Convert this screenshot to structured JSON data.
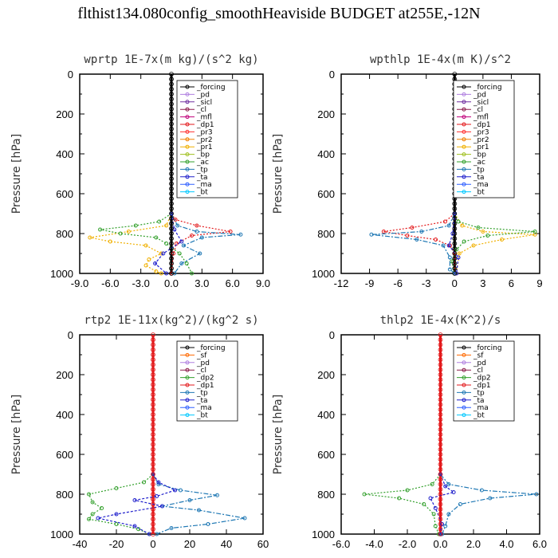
{
  "title": "flthist134.080config_smoothHeaviside  BUDGET at255E,-12N",
  "chart_data": [
    {
      "type": "line",
      "title": "wprtp  1E-7x(m kg)/(s^2 kg)",
      "ylabel": "Pressure [hPa]",
      "xlim": [
        -9,
        9
      ],
      "ylim": [
        1000,
        0
      ],
      "xticks": [
        "-9.0",
        "-6.0",
        "-3.0",
        "0.0",
        "3.0",
        "6.0",
        "9.0"
      ],
      "xtick_values": [
        -9,
        -6,
        -3,
        0,
        3,
        6,
        9
      ],
      "yticks": [
        0,
        200,
        400,
        600,
        800,
        1000
      ],
      "legend": [
        "_forcing",
        "_pd",
        "_sicl",
        "_cl",
        "_mfl",
        "_dp1",
        "_pr3",
        "_pr2",
        "_pr1",
        "_bp",
        "_ac",
        "_tp",
        "_ta",
        "_ma",
        "_bt"
      ],
      "series": [
        {
          "name": "_forcing",
          "color": "#000000",
          "values": [
            [
              0,
              0
            ],
            [
              0,
              1000
            ]
          ]
        },
        {
          "name": "_dp1",
          "color": "#e31a1c",
          "values": [
            [
              0,
              700
            ],
            [
              0.4,
              730
            ],
            [
              2.5,
              760
            ],
            [
              5.8,
              790
            ],
            [
              2.0,
              810
            ],
            [
              0.5,
              850
            ],
            [
              0.2,
              900
            ],
            [
              0,
              1000
            ]
          ]
        },
        {
          "name": "_pr1",
          "color": "#f0b000",
          "values": [
            [
              0,
              700
            ],
            [
              -0.5,
              760
            ],
            [
              -4.2,
              790
            ],
            [
              -8.0,
              820
            ],
            [
              -6.0,
              840
            ],
            [
              -2.5,
              860
            ],
            [
              -1.0,
              900
            ],
            [
              -2.2,
              930
            ],
            [
              -2.5,
              960
            ],
            [
              -1.5,
              990
            ],
            [
              -1.0,
              1000
            ]
          ]
        },
        {
          "name": "_ac",
          "color": "#33a02c",
          "values": [
            [
              0,
              700
            ],
            [
              -1.2,
              740
            ],
            [
              -3.5,
              760
            ],
            [
              -7.0,
              780
            ],
            [
              -5.0,
              800
            ],
            [
              -1.5,
              820
            ],
            [
              -0.5,
              850
            ],
            [
              0.8,
              900
            ],
            [
              1.5,
              950
            ],
            [
              2.0,
              1000
            ]
          ]
        },
        {
          "name": "_tp",
          "color": "#1f78b4",
          "values": [
            [
              0,
              700
            ],
            [
              0.6,
              760
            ],
            [
              2.5,
              790
            ],
            [
              6.8,
              805
            ],
            [
              3.0,
              820
            ],
            [
              1.2,
              860
            ],
            [
              2.8,
              900
            ],
            [
              1.0,
              950
            ],
            [
              0.3,
              1000
            ]
          ]
        },
        {
          "name": "_ta",
          "color": "#2020cc",
          "values": [
            [
              0,
              700
            ],
            [
              0.3,
              780
            ],
            [
              1.0,
              840
            ],
            [
              -0.8,
              900
            ],
            [
              -1.6,
              950
            ],
            [
              -0.5,
              1000
            ]
          ]
        }
      ]
    },
    {
      "type": "line",
      "title": "wpthlp  1E-4x(m K)/s^2",
      "ylabel": "Pressure [hPa]",
      "xlim": [
        -12,
        9
      ],
      "ylim": [
        1000,
        0
      ],
      "xticks": [
        "-12",
        "-9",
        "-6",
        "-3",
        "0",
        "3",
        "6",
        "9"
      ],
      "xtick_values": [
        -12,
        -9,
        -6,
        -3,
        0,
        3,
        6,
        9
      ],
      "yticks": [
        0,
        200,
        400,
        600,
        800,
        1000
      ],
      "legend": [
        "_forcing",
        "_pd",
        "_sicl",
        "_cl",
        "_mfl",
        "_dp1",
        "_pr3",
        "_pr2",
        "_pr1",
        "_bp",
        "_ac",
        "_tp",
        "_ta",
        "_ma",
        "_bt"
      ],
      "series": [
        {
          "name": "_forcing",
          "color": "#000000",
          "values": [
            [
              0,
              0
            ],
            [
              0,
              1000
            ]
          ]
        },
        {
          "name": "_dp1",
          "color": "#e31a1c",
          "values": [
            [
              0,
              700
            ],
            [
              -1.0,
              740
            ],
            [
              -4.5,
              770
            ],
            [
              -7.5,
              790
            ],
            [
              -5.0,
              810
            ],
            [
              -2.0,
              830
            ],
            [
              -0.5,
              860
            ],
            [
              0,
              900
            ],
            [
              0,
              1000
            ]
          ]
        },
        {
          "name": "_pr1",
          "color": "#f0b000",
          "values": [
            [
              0,
              700
            ],
            [
              0.8,
              760
            ],
            [
              3.0,
              790
            ],
            [
              8.5,
              805
            ],
            [
              5.0,
              830
            ],
            [
              2.0,
              860
            ],
            [
              0.5,
              900
            ],
            [
              0.2,
              1000
            ]
          ]
        },
        {
          "name": "_ac",
          "color": "#33a02c",
          "values": [
            [
              0,
              700
            ],
            [
              0.4,
              740
            ],
            [
              2.5,
              770
            ],
            [
              8.5,
              790
            ],
            [
              3.5,
              810
            ],
            [
              1.0,
              840
            ],
            [
              0.2,
              880
            ],
            [
              -0.3,
              940
            ],
            [
              0,
              1000
            ]
          ]
        },
        {
          "name": "_tp",
          "color": "#1f78b4",
          "values": [
            [
              0,
              700
            ],
            [
              -0.6,
              760
            ],
            [
              -3.5,
              790
            ],
            [
              -8.8,
              805
            ],
            [
              -4.0,
              830
            ],
            [
              -1.2,
              860
            ],
            [
              -0.5,
              920
            ],
            [
              -0.5,
              980
            ],
            [
              0,
              1000
            ]
          ]
        },
        {
          "name": "_ta",
          "color": "#2020cc",
          "values": [
            [
              0,
              700
            ],
            [
              -0.2,
              800
            ],
            [
              -0.6,
              860
            ],
            [
              0.4,
              920
            ],
            [
              0.2,
              1000
            ]
          ]
        }
      ]
    },
    {
      "type": "line",
      "title": "rtp2  1E-11x(kg^2)/(kg^2 s)",
      "ylabel": "Pressure [hPa]",
      "xlim": [
        -40,
        60
      ],
      "ylim": [
        1000,
        0
      ],
      "xticks": [
        "-40",
        "-20",
        "0",
        "20",
        "40",
        "60"
      ],
      "xtick_values": [
        -40,
        -20,
        0,
        20,
        40,
        60
      ],
      "yticks": [
        0,
        200,
        400,
        600,
        800,
        1000
      ],
      "legend": [
        "_forcing",
        "_sf",
        "_pd",
        "_cl",
        "_dp2",
        "_dp1",
        "_tp",
        "_ta",
        "_ma",
        "_bt"
      ],
      "series": [
        {
          "name": "_forcing",
          "color": "#e31a1c",
          "values": [
            [
              0,
              0
            ],
            [
              0,
              1000
            ]
          ]
        },
        {
          "name": "_dp2",
          "color": "#33a02c",
          "values": [
            [
              0,
              700
            ],
            [
              -5,
              740
            ],
            [
              -20,
              770
            ],
            [
              -35,
              800
            ],
            [
              -33,
              840
            ],
            [
              -28,
              870
            ],
            [
              -33,
              900
            ],
            [
              -35,
              925
            ],
            [
              -20,
              950
            ],
            [
              -8,
              975
            ],
            [
              -2,
              1000
            ]
          ]
        },
        {
          "name": "_tp",
          "color": "#1f78b4",
          "values": [
            [
              0,
              700
            ],
            [
              3,
              750
            ],
            [
              15,
              780
            ],
            [
              35,
              805
            ],
            [
              20,
              830
            ],
            [
              5,
              860
            ],
            [
              25,
              880
            ],
            [
              50,
              920
            ],
            [
              30,
              950
            ],
            [
              10,
              970
            ],
            [
              2,
              1000
            ]
          ]
        },
        {
          "name": "_ta",
          "color": "#2020cc",
          "values": [
            [
              0,
              700
            ],
            [
              3,
              740
            ],
            [
              12,
              780
            ],
            [
              2,
              810
            ],
            [
              -10,
              830
            ],
            [
              5,
              860
            ],
            [
              -20,
              900
            ],
            [
              -30,
              920
            ],
            [
              -10,
              960
            ],
            [
              -2,
              1000
            ]
          ]
        }
      ]
    },
    {
      "type": "line",
      "title": "thlp2  1E-4x(K^2)/s",
      "ylabel": "Pressure [hPa]",
      "xlim": [
        -6,
        6
      ],
      "ylim": [
        1000,
        0
      ],
      "xticks": [
        "-6.0",
        "-4.0",
        "-2.0",
        "0.0",
        "2.0",
        "4.0",
        "6.0"
      ],
      "xtick_values": [
        -6,
        -4,
        -2,
        0,
        2,
        4,
        6
      ],
      "yticks": [
        0,
        200,
        400,
        600,
        800,
        1000
      ],
      "legend": [
        "_forcing",
        "_sf",
        "_pd",
        "_cl",
        "_dp2",
        "_dp1",
        "_tp",
        "_ta",
        "_ma",
        "_bt"
      ],
      "series": [
        {
          "name": "_forcing",
          "color": "#e31a1c",
          "values": [
            [
              0,
              0
            ],
            [
              0,
              1000
            ]
          ]
        },
        {
          "name": "_dp2",
          "color": "#33a02c",
          "values": [
            [
              0,
              700
            ],
            [
              -0.5,
              750
            ],
            [
              -2.0,
              780
            ],
            [
              -4.6,
              800
            ],
            [
              -2.5,
              820
            ],
            [
              -1.0,
              850
            ],
            [
              -0.4,
              900
            ],
            [
              -0.3,
              960
            ],
            [
              -0.1,
              1000
            ]
          ]
        },
        {
          "name": "_tp",
          "color": "#1f78b4",
          "values": [
            [
              0,
              700
            ],
            [
              0.5,
              750
            ],
            [
              2.5,
              780
            ],
            [
              5.8,
              800
            ],
            [
              3.0,
              820
            ],
            [
              1.2,
              850
            ],
            [
              0.5,
              900
            ],
            [
              0.3,
              960
            ],
            [
              0.1,
              1000
            ]
          ]
        },
        {
          "name": "_ta",
          "color": "#2020cc",
          "values": [
            [
              0,
              700
            ],
            [
              0.3,
              760
            ],
            [
              0.8,
              790
            ],
            [
              -0.6,
              820
            ],
            [
              -0.3,
              870
            ],
            [
              0.1,
              950
            ],
            [
              0,
              1000
            ]
          ]
        }
      ]
    }
  ]
}
